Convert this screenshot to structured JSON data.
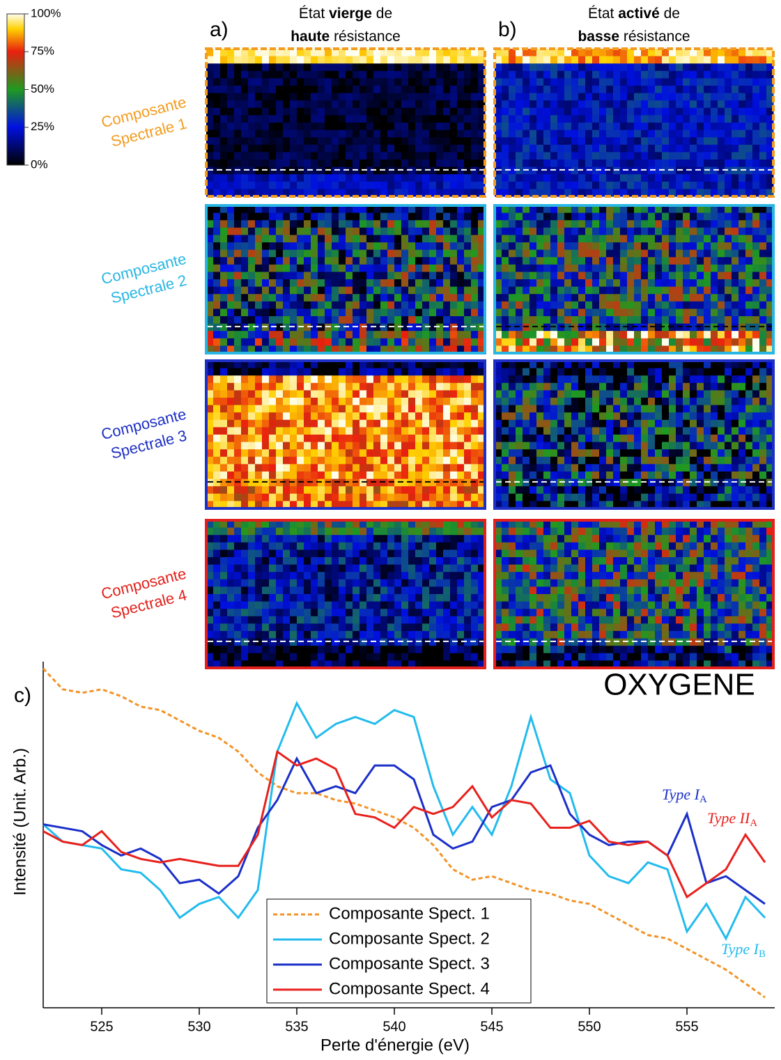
{
  "figure": {
    "colorbar": {
      "ticks": [
        {
          "value": 0,
          "label": "0%"
        },
        {
          "value": 25,
          "label": "25%"
        },
        {
          "value": 50,
          "label": "50%"
        },
        {
          "value": 75,
          "label": "75%"
        },
        {
          "value": 100,
          "label": "100%"
        }
      ],
      "range": [
        0,
        100
      ]
    },
    "columns": [
      {
        "label": "a)",
        "line1_pre": "État ",
        "line1_bold": "vierge",
        "line1_post": " de",
        "line2_bold": "haute",
        "line2_post": " résistance"
      },
      {
        "label": "b)",
        "line1_pre": "État ",
        "line1_bold": "activé",
        "line1_post": " de",
        "line2_bold": "basse",
        "line2_post": " résistance"
      }
    ],
    "rows": [
      {
        "line1": "Composante",
        "line2": "Spectrale 1",
        "color": "#f39c1f"
      },
      {
        "line1": "Composante",
        "line2": "Spectrale 2",
        "color": "#29b6e3"
      },
      {
        "line1": "Composante",
        "line2": "Spectrale 3",
        "color": "#1d2fc4"
      },
      {
        "line1": "Composante",
        "line2": "Spectrale 4",
        "color": "#e3201b"
      }
    ],
    "element": "OXYGENE"
  },
  "chart_data": {
    "type": "line",
    "panel_label": "c)",
    "xlabel": "Perte d'énergie (eV)",
    "ylabel": "Intensité (Unit. Arb.)",
    "x": [
      522,
      523,
      524,
      525,
      526,
      527,
      528,
      529,
      530,
      531,
      532,
      533,
      534,
      535,
      536,
      537,
      538,
      539,
      540,
      541,
      542,
      543,
      544,
      545,
      546,
      547,
      548,
      549,
      550,
      551,
      552,
      553,
      554,
      555,
      556,
      557,
      558,
      559
    ],
    "xlim": [
      522,
      559.5
    ],
    "xticks": [
      525,
      530,
      535,
      540,
      545,
      550,
      555
    ],
    "ylim": [
      0,
      100
    ],
    "series": [
      {
        "name": "Composante Spect. 1",
        "color": "#f39224",
        "linestyle": "dashed",
        "values": [
          98,
          92,
          91,
          92,
          90,
          87,
          86,
          83,
          80,
          78,
          74,
          68,
          64,
          62,
          62,
          60,
          59,
          57,
          55,
          52,
          47,
          40,
          37,
          38,
          36,
          34,
          33,
          31,
          30,
          27,
          24,
          21,
          20,
          17,
          14,
          11,
          7,
          3
        ]
      },
      {
        "name": "Composante Spect. 2",
        "color": "#22bbee",
        "linestyle": "solid",
        "values": [
          53,
          48,
          47,
          46,
          40,
          39,
          34,
          26,
          30,
          32,
          26,
          34,
          74,
          88,
          78,
          82,
          84,
          82,
          86,
          84,
          64,
          50,
          58,
          50,
          64,
          84,
          66,
          62,
          44,
          38,
          36,
          42,
          40,
          22,
          30,
          20,
          32,
          26
        ]
      },
      {
        "name": "Composante Spect. 3",
        "color": "#1a2fc8",
        "linestyle": "solid",
        "values": [
          53,
          52,
          51,
          47,
          44,
          46,
          43,
          36,
          37,
          33,
          38,
          52,
          60,
          72,
          62,
          64,
          62,
          70,
          70,
          66,
          50,
          46,
          48,
          58,
          60,
          68,
          70,
          56,
          50,
          47,
          48,
          48,
          44,
          56,
          36,
          38,
          34,
          30
        ]
      },
      {
        "name": "Composante Spect. 4",
        "color": "#e8201c",
        "linestyle": "solid",
        "values": [
          51,
          48,
          47,
          51,
          45,
          43,
          42,
          43,
          42,
          41,
          41,
          50,
          74,
          70,
          72,
          69,
          56,
          55,
          52,
          58,
          56,
          58,
          64,
          55,
          60,
          59,
          52,
          52,
          54,
          48,
          47,
          48,
          44,
          32,
          36,
          40,
          50,
          42
        ]
      }
    ],
    "annotations": [
      {
        "text": "Type I",
        "sub": "A",
        "color": "#1a2fc8"
      },
      {
        "text": "Type II",
        "sub": "A",
        "color": "#e8201c"
      },
      {
        "text": "Type I",
        "sub": "B",
        "color": "#22bbee"
      }
    ]
  }
}
